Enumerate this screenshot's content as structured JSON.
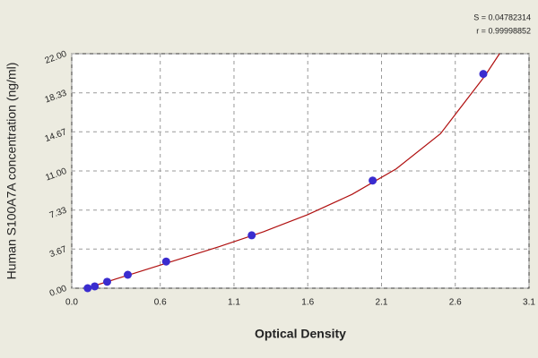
{
  "chart_data": {
    "type": "scatter",
    "annotations": [
      "S = 0.04782314",
      "r = 0.99998852"
    ],
    "x_label": "Optical Density",
    "y_label": "Human S100A7A concentration (ng/ml)",
    "xlim": [
      0,
      3.1
    ],
    "xticks": [
      {
        "value": 0,
        "label": "0.0"
      },
      0.6,
      1.1,
      1.6,
      2.1,
      2.6,
      3.1
    ],
    "ylim": [
      0,
      22
    ],
    "yticks": [
      {
        "value": 0,
        "label": "0.00"
      },
      3.67,
      7.33,
      {
        "value": 11,
        "label": "11.00"
      },
      14.67,
      18.33,
      {
        "value": 22,
        "label": "22.00"
      }
    ],
    "grid": true,
    "series": [
      {
        "kind": "scatter",
        "color": "#3a2ccf",
        "x": [
          0.108,
          0.156,
          0.24,
          0.38,
          0.64,
          1.22,
          2.04,
          2.79
        ],
        "values": [
          0,
          0.17,
          0.6,
          1.26,
          2.5,
          4.96,
          10.1,
          20.1
        ]
      },
      {
        "kind": "line",
        "color": "#b01010",
        "x": [
          0.1,
          0.4,
          0.7,
          1.0,
          1.3,
          1.6,
          1.9,
          2.2,
          2.5,
          2.8,
          2.9
        ],
        "values": [
          0,
          1.3,
          2.6,
          3.9,
          5.3,
          6.9,
          8.8,
          11.2,
          14.5,
          19.9,
          22
        ]
      }
    ]
  }
}
